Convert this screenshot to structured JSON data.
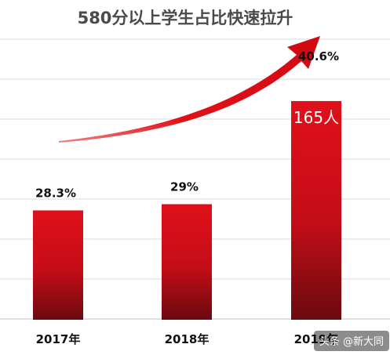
{
  "chart_data": {
    "type": "bar",
    "title": "580分以上学生占比快速拉升",
    "categories": [
      "2017年",
      "2018年",
      "2019年"
    ],
    "values": [
      28.3,
      29,
      40.6
    ],
    "data_labels": [
      "28.3%",
      "29%",
      "40.6%"
    ],
    "annotations": [
      "165人"
    ],
    "trend_arrow": true,
    "ylim": [
      16,
      48
    ],
    "grid": true,
    "legend": "none",
    "colors": {
      "bar_top": "#e0101a",
      "bar_bottom": "#6b0a10",
      "arrow": "#e01018",
      "grid": "#d9d9d9"
    }
  },
  "watermark": {
    "text": "头条 @新大同"
  }
}
